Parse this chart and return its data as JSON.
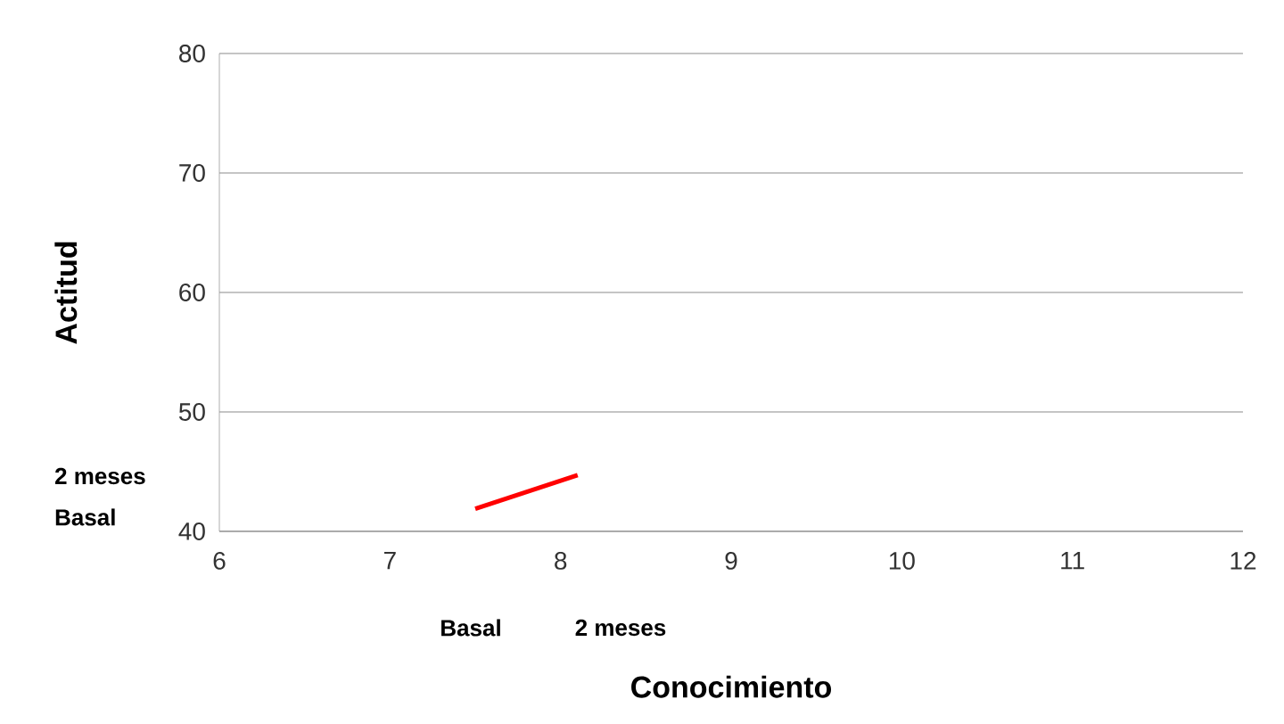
{
  "chart_data": {
    "type": "line",
    "xlabel": "Conocimiento",
    "ylabel": "Actitud",
    "x": [
      7.5,
      8.1
    ],
    "series": [
      {
        "color": "#ff0000",
        "values": [
          41.9,
          44.7
        ]
      }
    ],
    "xlim": [
      6,
      12
    ],
    "ylim": [
      40,
      80
    ],
    "xticks": [
      6,
      7,
      8,
      9,
      10,
      11,
      12
    ],
    "yticks": [
      40,
      50,
      60,
      70,
      80
    ],
    "grid": "y",
    "marker": "none",
    "line_style": "solid",
    "annotations": [
      "2 meses",
      "Basal",
      "Basal",
      "2 meses"
    ]
  }
}
